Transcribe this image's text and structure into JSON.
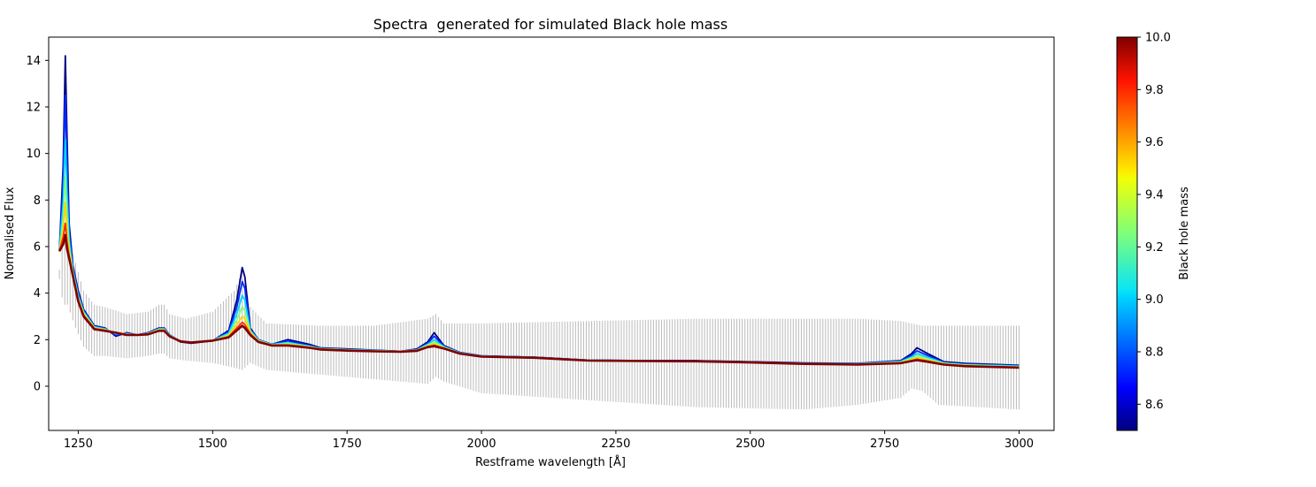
{
  "chart_data": {
    "type": "line",
    "title": "Spectra  generated for simulated Black hole mass",
    "xlabel": "Restframe wavelength [Å]",
    "ylabel": "Normalised Flux",
    "xlim": [
      1195,
      3065
    ],
    "ylim": [
      -1.9,
      15.0
    ],
    "xticks": [
      1250,
      1500,
      1750,
      2000,
      2250,
      2500,
      2750,
      3000
    ],
    "xtick_labels": [
      "1250",
      "1500",
      "1750",
      "2000",
      "2250",
      "2500",
      "2750",
      "3000"
    ],
    "yticks": [
      0,
      2,
      4,
      6,
      8,
      10,
      12,
      14
    ],
    "ytick_labels": [
      "0",
      "2",
      "4",
      "6",
      "8",
      "10",
      "12",
      "14"
    ],
    "grid": false,
    "colormap": "jet",
    "colors": {
      "min": "#00007f",
      "max": "#7f0000",
      "errorbar": "#c0c0c0"
    },
    "colorbar": {
      "label": "Black hole mass",
      "range": [
        8.5,
        10.0
      ],
      "ticks": [
        8.6,
        8.8,
        9.0,
        9.2,
        9.4,
        9.6,
        9.8,
        10.0
      ],
      "tick_labels": [
        "8.6",
        "8.8",
        "9.0",
        "9.2",
        "9.4",
        "9.6",
        "9.8",
        "10.0"
      ]
    },
    "wavelength": [
      1215,
      1222,
      1226,
      1229,
      1233,
      1240,
      1250,
      1260,
      1280,
      1300,
      1320,
      1340,
      1360,
      1380,
      1400,
      1410,
      1420,
      1440,
      1460,
      1500,
      1530,
      1545,
      1555,
      1560,
      1570,
      1585,
      1610,
      1640,
      1660,
      1680,
      1700,
      1750,
      1800,
      1850,
      1880,
      1900,
      1912,
      1930,
      1960,
      2000,
      2100,
      2200,
      2300,
      2400,
      2500,
      2600,
      2700,
      2780,
      2800,
      2810,
      2830,
      2860,
      2900,
      3000
    ],
    "series": [
      {
        "mass": 8.5,
        "flux": [
          5.8,
          9.5,
          14.2,
          10.8,
          7.0,
          5.2,
          4.1,
          3.3,
          2.6,
          2.5,
          2.15,
          2.3,
          2.2,
          2.3,
          2.5,
          2.5,
          2.2,
          1.9,
          1.85,
          1.95,
          2.4,
          3.7,
          5.1,
          4.7,
          2.5,
          2.0,
          1.8,
          2.0,
          1.9,
          1.8,
          1.65,
          1.6,
          1.55,
          1.5,
          1.6,
          1.9,
          2.3,
          1.75,
          1.45,
          1.3,
          1.25,
          1.12,
          1.1,
          1.1,
          1.05,
          1.0,
          0.98,
          1.1,
          1.4,
          1.65,
          1.4,
          1.05,
          0.98,
          0.9
        ]
      },
      {
        "mass": 8.75,
        "flux": [
          5.8,
          8.8,
          12.5,
          9.6,
          6.7,
          5.1,
          4.0,
          3.25,
          2.58,
          2.48,
          2.2,
          2.28,
          2.2,
          2.28,
          2.48,
          2.48,
          2.2,
          1.92,
          1.87,
          1.95,
          2.35,
          3.4,
          4.5,
          4.2,
          2.45,
          2.0,
          1.8,
          1.95,
          1.85,
          1.75,
          1.63,
          1.58,
          1.54,
          1.5,
          1.58,
          1.85,
          2.15,
          1.72,
          1.44,
          1.3,
          1.24,
          1.12,
          1.1,
          1.09,
          1.04,
          0.99,
          0.97,
          1.08,
          1.33,
          1.52,
          1.32,
          1.02,
          0.95,
          0.88
        ]
      },
      {
        "mass": 9.0,
        "flux": [
          5.8,
          7.9,
          10.6,
          8.3,
          6.3,
          5.0,
          3.9,
          3.2,
          2.55,
          2.46,
          2.25,
          2.26,
          2.2,
          2.27,
          2.46,
          2.46,
          2.18,
          1.93,
          1.88,
          1.96,
          2.28,
          3.1,
          3.9,
          3.7,
          2.4,
          1.98,
          1.79,
          1.88,
          1.8,
          1.72,
          1.62,
          1.57,
          1.53,
          1.5,
          1.56,
          1.8,
          2.0,
          1.7,
          1.43,
          1.29,
          1.24,
          1.11,
          1.09,
          1.08,
          1.03,
          0.98,
          0.96,
          1.06,
          1.26,
          1.4,
          1.25,
          1.0,
          0.93,
          0.86
        ]
      },
      {
        "mass": 9.25,
        "flux": [
          5.8,
          7.2,
          9.0,
          7.3,
          6.0,
          4.9,
          3.8,
          3.15,
          2.52,
          2.44,
          2.28,
          2.24,
          2.2,
          2.26,
          2.44,
          2.44,
          2.17,
          1.93,
          1.88,
          1.96,
          2.22,
          2.85,
          3.4,
          3.25,
          2.35,
          1.96,
          1.78,
          1.84,
          1.77,
          1.7,
          1.61,
          1.56,
          1.52,
          1.5,
          1.55,
          1.76,
          1.9,
          1.67,
          1.42,
          1.29,
          1.23,
          1.11,
          1.09,
          1.08,
          1.03,
          0.97,
          0.95,
          1.04,
          1.2,
          1.3,
          1.18,
          0.98,
          0.91,
          0.84
        ]
      },
      {
        "mass": 9.5,
        "flux": [
          5.8,
          6.7,
          7.9,
          6.6,
          5.8,
          4.85,
          3.75,
          3.1,
          2.5,
          2.42,
          2.3,
          2.23,
          2.2,
          2.25,
          2.42,
          2.42,
          2.16,
          1.93,
          1.88,
          1.96,
          2.17,
          2.65,
          3.0,
          2.9,
          2.3,
          1.94,
          1.77,
          1.8,
          1.74,
          1.68,
          1.6,
          1.55,
          1.51,
          1.5,
          1.54,
          1.73,
          1.82,
          1.65,
          1.41,
          1.28,
          1.23,
          1.1,
          1.08,
          1.07,
          1.02,
          0.97,
          0.94,
          1.02,
          1.15,
          1.22,
          1.12,
          0.96,
          0.89,
          0.82
        ]
      },
      {
        "mass": 9.75,
        "flux": [
          5.8,
          6.4,
          7.0,
          6.2,
          5.6,
          4.8,
          3.7,
          3.05,
          2.48,
          2.4,
          2.3,
          2.22,
          2.2,
          2.24,
          2.4,
          2.4,
          2.15,
          1.93,
          1.88,
          1.96,
          2.13,
          2.5,
          2.75,
          2.65,
          2.25,
          1.92,
          1.76,
          1.77,
          1.72,
          1.66,
          1.59,
          1.54,
          1.5,
          1.49,
          1.53,
          1.7,
          1.76,
          1.63,
          1.4,
          1.28,
          1.22,
          1.1,
          1.08,
          1.07,
          1.02,
          0.96,
          0.94,
          1.0,
          1.1,
          1.16,
          1.08,
          0.94,
          0.87,
          0.8
        ]
      },
      {
        "mass": 10.0,
        "flux": [
          5.8,
          6.1,
          6.5,
          5.9,
          5.5,
          4.75,
          3.65,
          3.0,
          2.45,
          2.38,
          2.3,
          2.2,
          2.2,
          2.23,
          2.38,
          2.38,
          2.14,
          1.93,
          1.88,
          1.96,
          2.1,
          2.4,
          2.6,
          2.5,
          2.2,
          1.9,
          1.75,
          1.75,
          1.7,
          1.65,
          1.58,
          1.53,
          1.5,
          1.48,
          1.52,
          1.68,
          1.72,
          1.62,
          1.4,
          1.27,
          1.22,
          1.1,
          1.08,
          1.07,
          1.02,
          0.96,
          0.93,
          0.99,
          1.08,
          1.12,
          1.05,
          0.93,
          0.86,
          0.8
        ]
      }
    ],
    "errorbar": {
      "wavelength": [
        1215,
        1222,
        1230,
        1245,
        1260,
        1280,
        1300,
        1340,
        1380,
        1400,
        1410,
        1420,
        1450,
        1500,
        1540,
        1555,
        1570,
        1600,
        1700,
        1800,
        1900,
        1915,
        1930,
        2000,
        2200,
        2400,
        2600,
        2700,
        2780,
        2800,
        2820,
        2850,
        3000
      ],
      "upper": [
        5.0,
        6.5,
        6.4,
        5.3,
        4.1,
        3.5,
        3.4,
        3.1,
        3.2,
        3.5,
        3.5,
        3.1,
        2.9,
        3.2,
        4.1,
        4.9,
        3.4,
        2.7,
        2.6,
        2.6,
        2.9,
        3.1,
        2.7,
        2.7,
        2.8,
        2.9,
        2.9,
        2.9,
        2.8,
        2.7,
        2.6,
        2.6,
        2.6
      ],
      "lower": [
        4.6,
        3.5,
        3.5,
        2.5,
        1.7,
        1.3,
        1.3,
        1.2,
        1.3,
        1.4,
        1.4,
        1.2,
        1.1,
        1.0,
        0.8,
        0.7,
        1.0,
        0.7,
        0.5,
        0.3,
        0.1,
        0.4,
        0.2,
        -0.3,
        -0.6,
        -0.9,
        -1.0,
        -0.8,
        -0.5,
        -0.1,
        -0.2,
        -0.8,
        -1.0
      ]
    }
  }
}
